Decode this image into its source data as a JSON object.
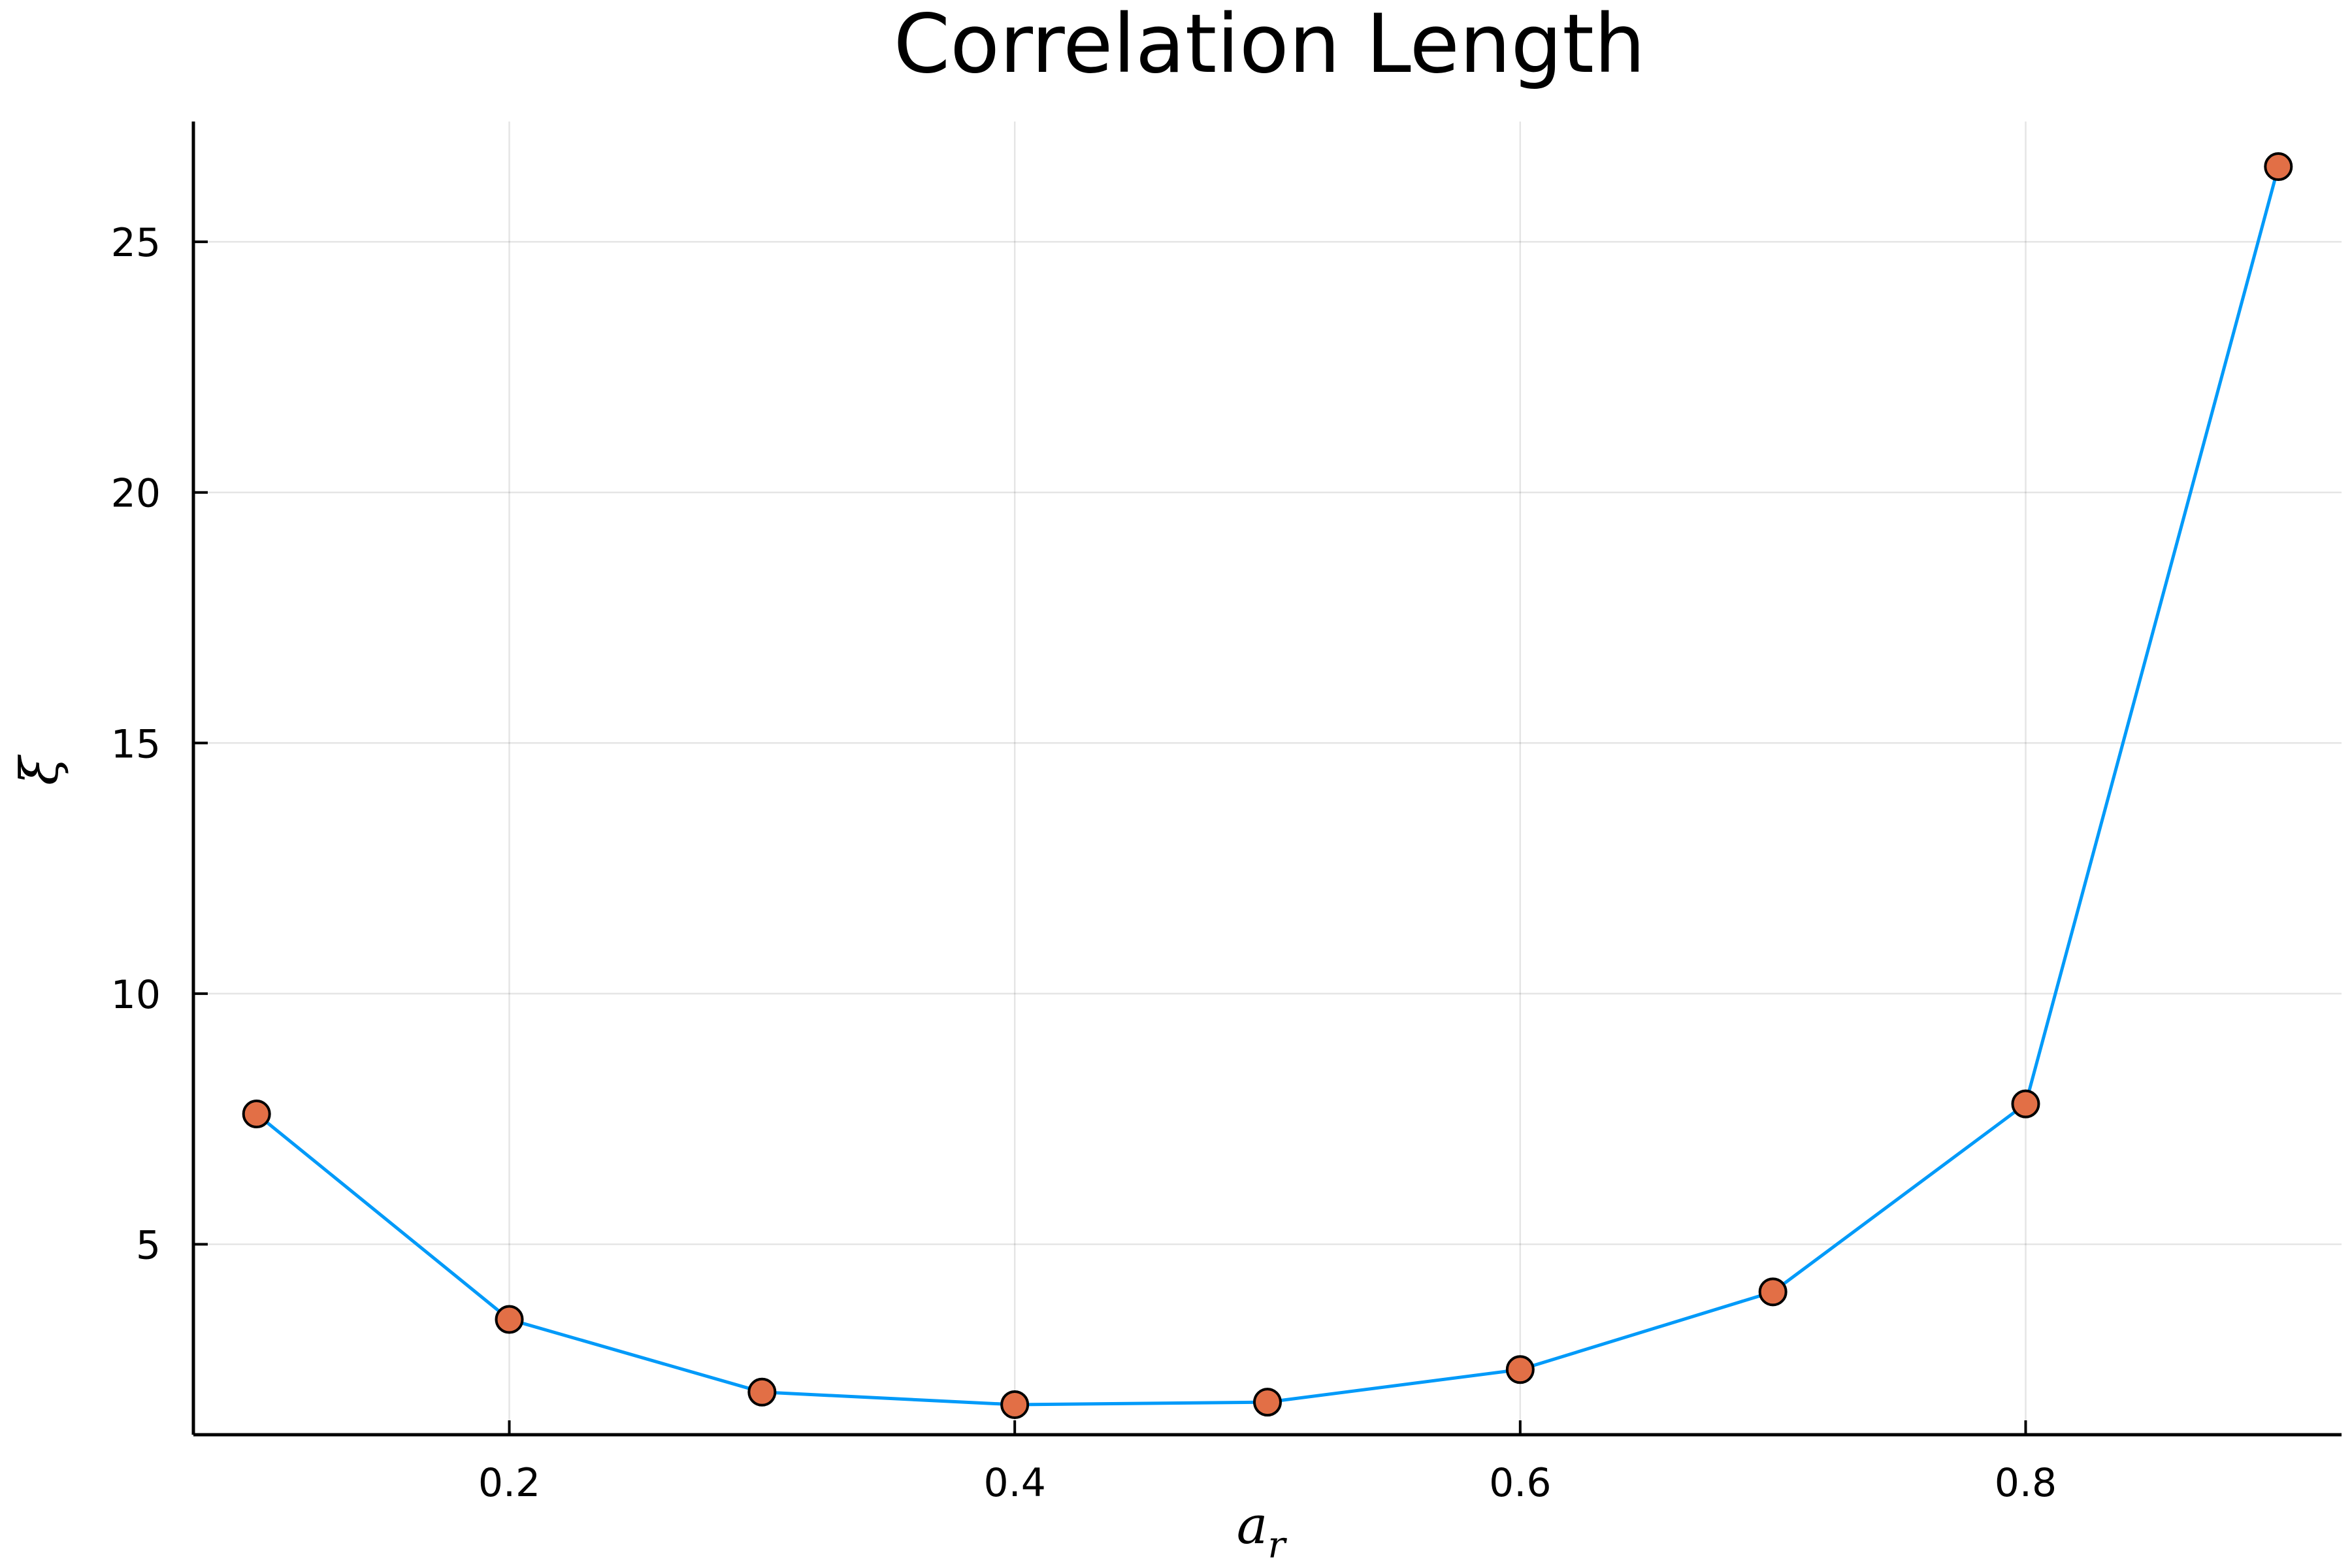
{
  "chart_data": {
    "type": "line",
    "title": "Correlation Length",
    "xlabel": "a",
    "xlabel_subscript": "r",
    "ylabel": "ξ",
    "xlim": [
      0.075,
      0.925
    ],
    "ylim": [
      1.2,
      27.4
    ],
    "x_ticks": [
      0.2,
      0.4,
      0.6,
      0.8
    ],
    "x_tick_labels": [
      "0.2",
      "0.4",
      "0.6",
      "0.8"
    ],
    "y_ticks": [
      5,
      10,
      15,
      20,
      25
    ],
    "y_tick_labels": [
      "5",
      "10",
      "15",
      "20",
      "25"
    ],
    "grid": true,
    "legend": "none",
    "series": [
      {
        "x": [
          0.1,
          0.2,
          0.3,
          0.4,
          0.5,
          0.6,
          0.7,
          0.8,
          0.9
        ],
        "y": [
          7.6,
          3.5,
          2.05,
          1.8,
          1.85,
          2.5,
          4.05,
          7.8,
          26.5
        ],
        "line_color": "#009af9",
        "marker_color": "#e26f46",
        "marker_edge_color": "#000000"
      }
    ]
  }
}
